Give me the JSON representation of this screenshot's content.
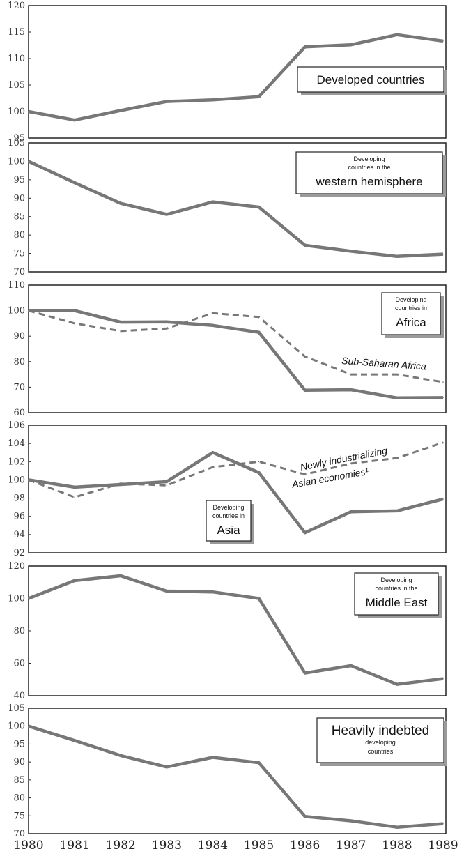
{
  "chart_data": [
    {
      "type": "line",
      "x": [
        1980,
        1981,
        1982,
        1983,
        1984,
        1985,
        1986,
        1987,
        1988,
        1989
      ],
      "ylim": [
        95,
        120
      ],
      "yticks": [
        95,
        100,
        105,
        110,
        115,
        120
      ],
      "legend_lines": [
        "Developed countries"
      ],
      "series": [
        {
          "style": "solid",
          "values": [
            100,
            98.4,
            100.2,
            101.9,
            102.2,
            102.8,
            112.2,
            112.6,
            114.5,
            113.3
          ]
        }
      ],
      "annotations": []
    },
    {
      "type": "line",
      "x": [
        1980,
        1981,
        1982,
        1983,
        1984,
        1985,
        1986,
        1987,
        1988,
        1989
      ],
      "ylim": [
        70,
        105
      ],
      "yticks": [
        70,
        75,
        80,
        85,
        90,
        95,
        100,
        105
      ],
      "legend_lines": [
        "Developing",
        "countries in the",
        "western hemisphere"
      ],
      "series": [
        {
          "style": "solid",
          "values": [
            100,
            94.2,
            88.6,
            85.6,
            89,
            87.6,
            77.2,
            75.6,
            74.2,
            74.8
          ]
        }
      ],
      "annotations": []
    },
    {
      "type": "line",
      "x": [
        1980,
        1981,
        1982,
        1983,
        1984,
        1985,
        1986,
        1987,
        1988,
        1989
      ],
      "ylim": [
        60,
        110
      ],
      "yticks": [
        60,
        70,
        80,
        90,
        100,
        110
      ],
      "legend_lines": [
        "Developing",
        "countries in",
        "Africa"
      ],
      "series": [
        {
          "style": "solid",
          "values": [
            100,
            100,
            95.5,
            95.6,
            94.2,
            91.5,
            68.8,
            69,
            65.8,
            65.9
          ]
        },
        {
          "name": "Sub-Saharan Africa",
          "style": "dashed",
          "values": [
            100,
            95,
            92,
            93,
            99,
            97.5,
            82,
            75,
            75,
            72
          ]
        }
      ],
      "annotations": [
        {
          "text": "Sub-Saharan Africa"
        }
      ]
    },
    {
      "type": "line",
      "x": [
        1980,
        1981,
        1982,
        1983,
        1984,
        1985,
        1986,
        1987,
        1988,
        1989
      ],
      "ylim": [
        92,
        106
      ],
      "yticks": [
        92,
        94,
        96,
        98,
        100,
        102,
        104,
        106
      ],
      "legend_lines": [
        "Developing",
        "countries in",
        "Asia"
      ],
      "series": [
        {
          "style": "solid",
          "values": [
            100,
            99.2,
            99.5,
            99.8,
            103,
            100.8,
            94.2,
            96.5,
            96.6,
            97.9
          ]
        },
        {
          "name": "Newly industrializing Asian economies",
          "style": "dashed",
          "values": [
            100,
            98.1,
            99.6,
            99.4,
            101.4,
            102,
            100.6,
            101.8,
            102.4,
            104.1
          ]
        }
      ],
      "annotations": [
        {
          "text": "Newly industrializing"
        },
        {
          "text": "Asian economies¹"
        }
      ]
    },
    {
      "type": "line",
      "x": [
        1980,
        1981,
        1982,
        1983,
        1984,
        1985,
        1986,
        1987,
        1988,
        1989
      ],
      "ylim": [
        40,
        120
      ],
      "yticks": [
        40,
        60,
        80,
        100,
        120
      ],
      "legend_lines": [
        "Developing",
        "countries in the",
        "Middle East"
      ],
      "series": [
        {
          "style": "solid",
          "values": [
            100,
            111,
            114,
            104.5,
            104,
            100,
            54,
            58.5,
            47,
            50.5
          ]
        }
      ],
      "annotations": []
    },
    {
      "type": "line",
      "x": [
        1980,
        1981,
        1982,
        1983,
        1984,
        1985,
        1986,
        1987,
        1988,
        1989
      ],
      "ylim": [
        70,
        105
      ],
      "yticks": [
        70,
        75,
        80,
        85,
        90,
        95,
        100,
        105
      ],
      "legend_lines": [
        "Heavily indebted",
        "developing",
        "countries"
      ],
      "series": [
        {
          "style": "solid",
          "values": [
            100,
            96,
            91.8,
            88.6,
            91.3,
            89.8,
            74.8,
            73.6,
            71.8,
            72.8
          ]
        }
      ],
      "annotations": []
    }
  ],
  "x_axis": {
    "labels": [
      "1980",
      "1981",
      "1982",
      "1983",
      "1984",
      "1985",
      "1986",
      "1987",
      "1988",
      "1989"
    ]
  },
  "colors": {
    "line": "#777777",
    "frame": "#222222",
    "shadow": "#9a9a9a"
  }
}
